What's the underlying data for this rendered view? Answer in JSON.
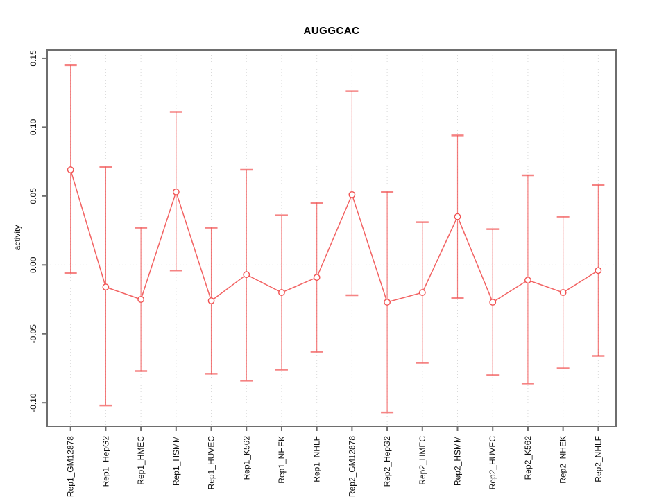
{
  "chart_data": {
    "type": "line",
    "subtype": "point-estimates-with-error-bars",
    "title": "AUGGCAC",
    "xlabel": "",
    "ylabel": "activity",
    "categories": [
      "Rep1_GM12878",
      "Rep1_HepG2",
      "Rep1_HMEC",
      "Rep1_HSMM",
      "Rep1_HUVEC",
      "Rep1_K562",
      "Rep1_NHEK",
      "Rep1_NHLF",
      "Rep2_GM12878",
      "Rep2_HepG2",
      "Rep2_HMEC",
      "Rep2_HSMM",
      "Rep2_HUVEC",
      "Rep2_K562",
      "Rep2_NHEK",
      "Rep2_NHLF"
    ],
    "series": [
      {
        "name": "activity",
        "values": [
          0.069,
          -0.016,
          -0.025,
          0.053,
          -0.026,
          -0.007,
          -0.02,
          -0.009,
          0.051,
          -0.027,
          -0.02,
          0.035,
          -0.027,
          -0.011,
          -0.02,
          -0.004
        ],
        "ci_lower": [
          -0.006,
          -0.102,
          -0.077,
          -0.004,
          -0.079,
          -0.084,
          -0.076,
          -0.063,
          -0.022,
          -0.107,
          -0.071,
          -0.024,
          -0.08,
          -0.086,
          -0.075,
          -0.066
        ],
        "ci_upper": [
          0.145,
          0.071,
          0.027,
          0.111,
          0.027,
          0.069,
          0.036,
          0.045,
          0.126,
          0.053,
          0.031,
          0.094,
          0.026,
          0.065,
          0.035,
          0.058
        ]
      }
    ],
    "y_ticks": [
      -0.1,
      -0.05,
      0.0,
      0.05,
      0.1,
      0.15
    ],
    "y_tick_labels": [
      "-0.10",
      "-0.05",
      "0.00",
      "0.05",
      "0.10",
      "0.15"
    ],
    "ylim": [
      -0.117,
      0.156
    ],
    "grid": {
      "vertical_dotted_per_category": true,
      "horizontal_dotted_zero_line": true,
      "other_horizontal_gridlines": false
    },
    "legend": "none",
    "marker": "open-circle",
    "colors": {
      "series": "#f15151",
      "grid": "#d9d9d9",
      "zero_line": "#e2e2e2",
      "axis": "#6e6e6e",
      "text": "#111111"
    }
  }
}
